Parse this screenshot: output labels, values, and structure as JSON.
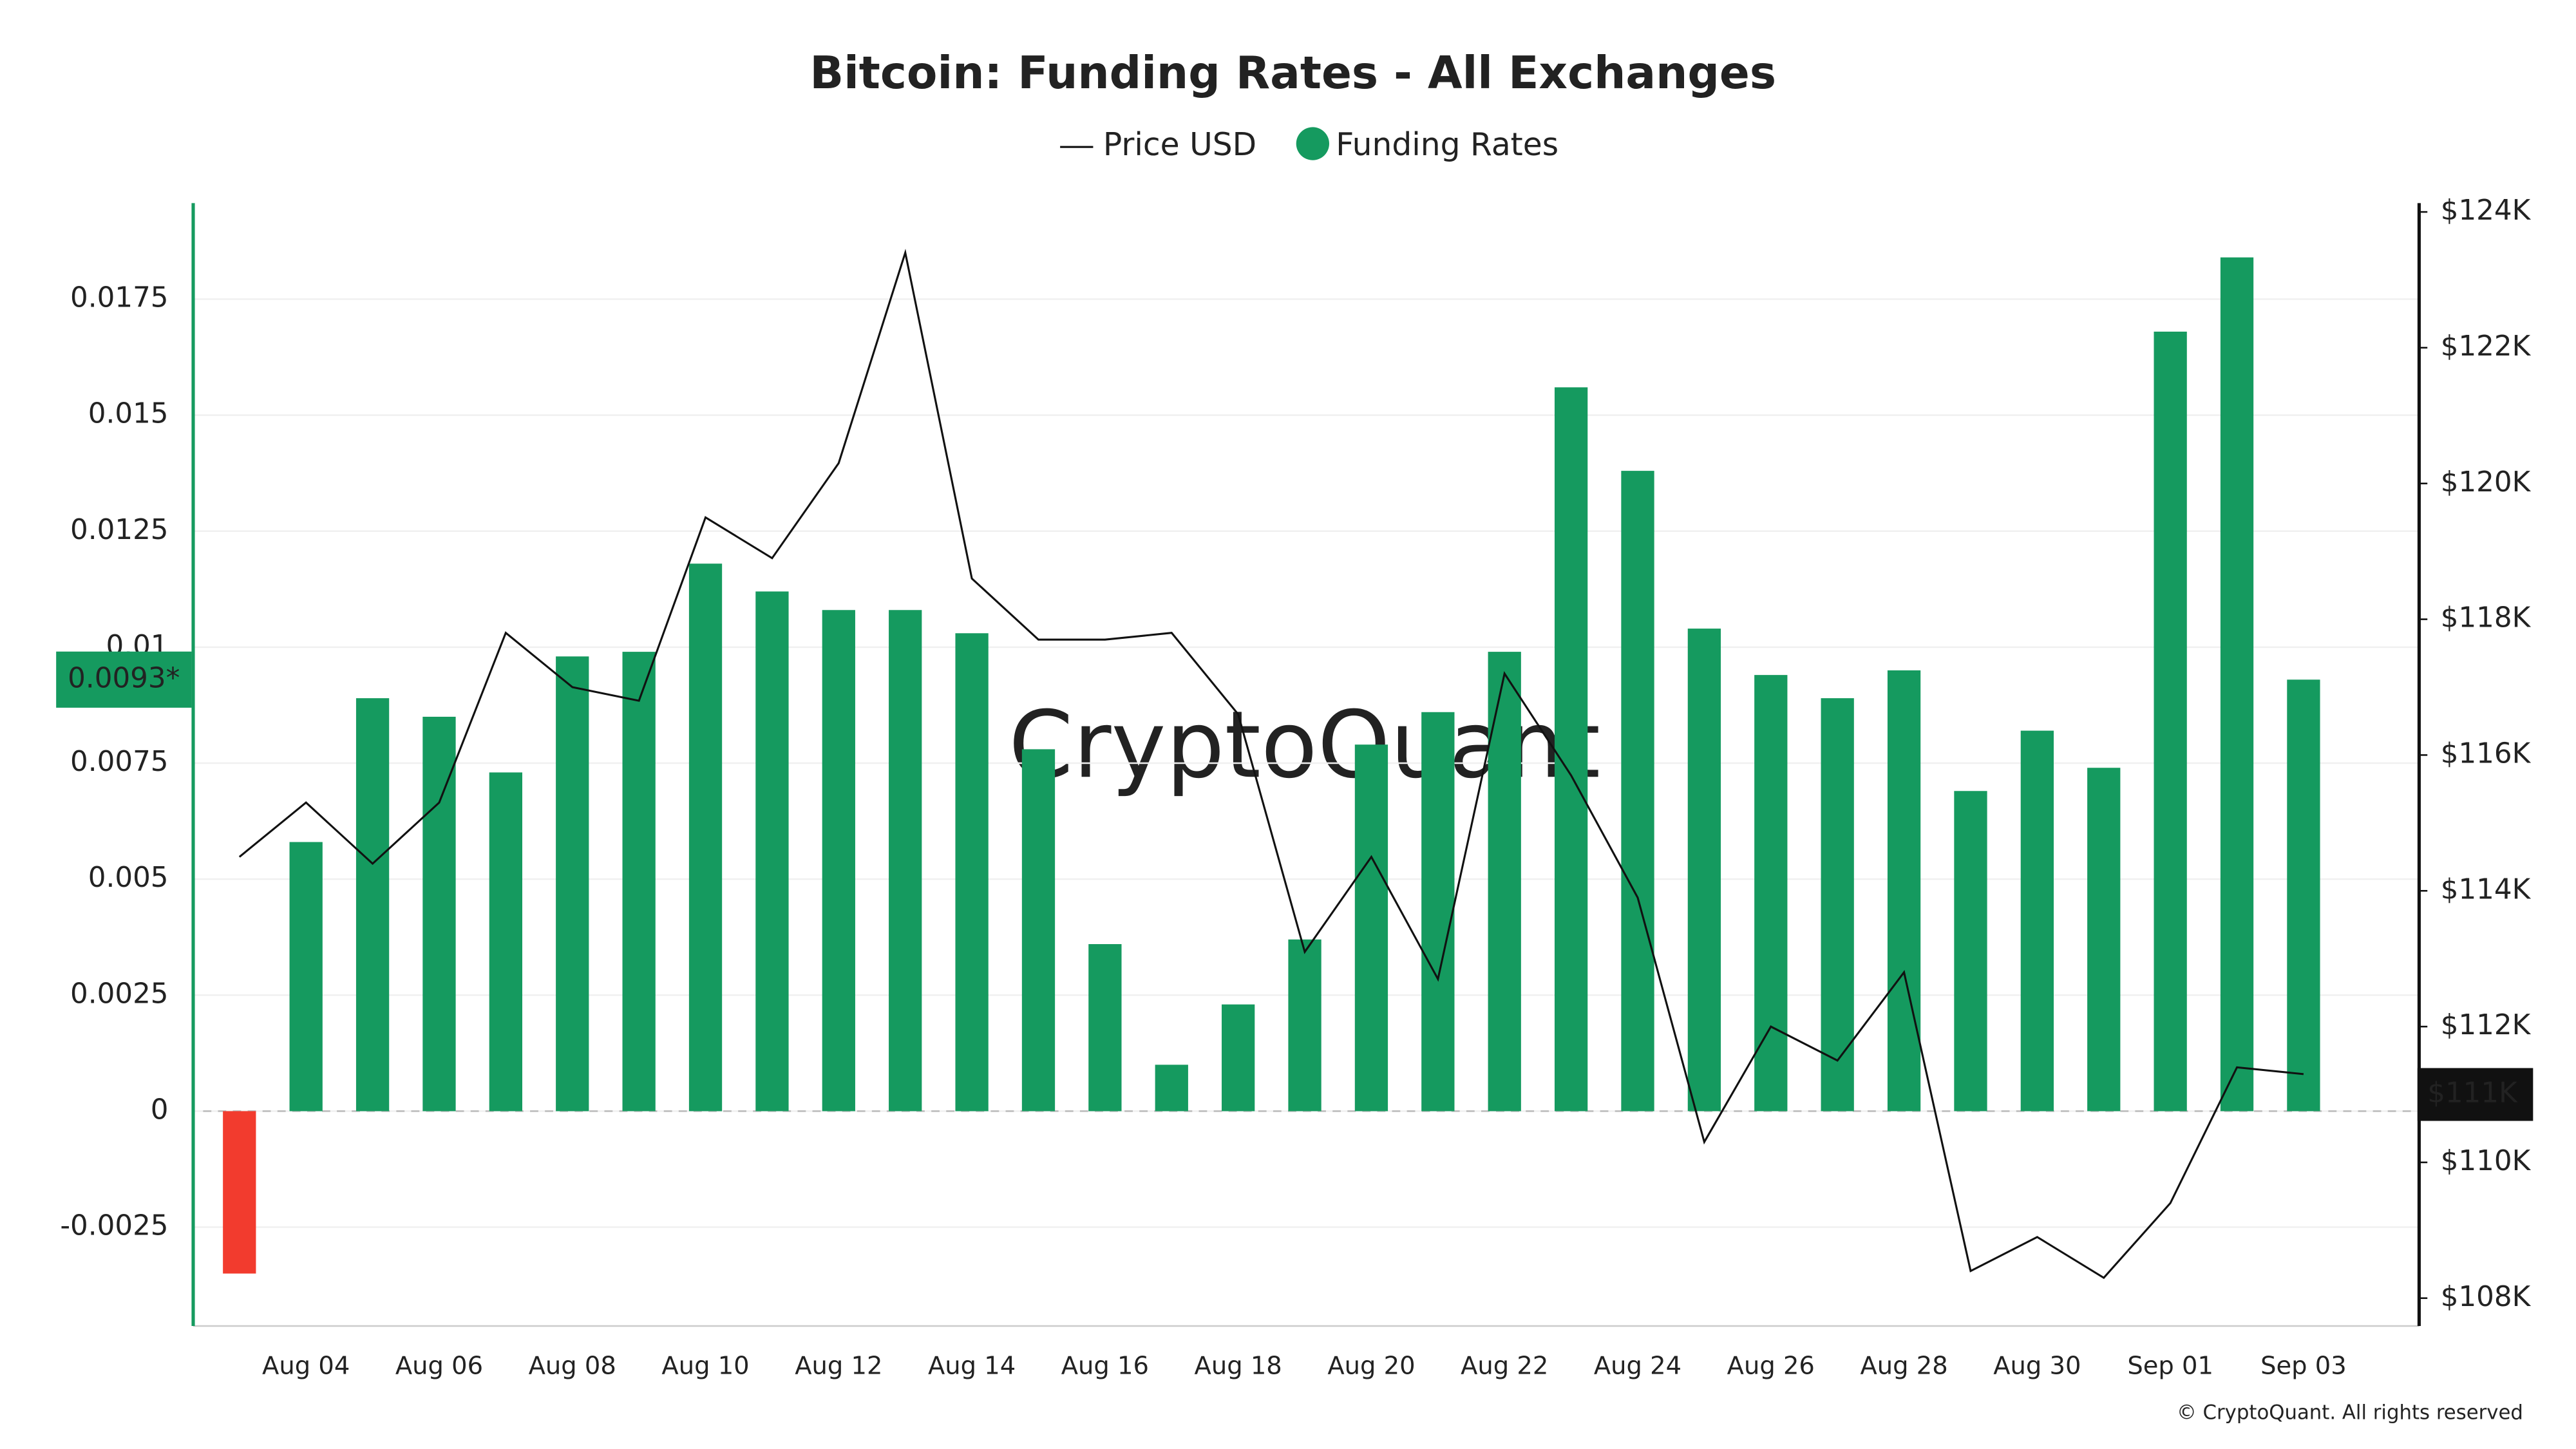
{
  "chart_data": {
    "type": "bar",
    "title": "Bitcoin: Funding Rates - All Exchanges",
    "watermark": "CryptoQuant",
    "footer": "© CryptoQuant. All rights reserved",
    "categories": [
      null,
      "Aug 04",
      null,
      "Aug 06",
      null,
      "Aug 08",
      null,
      "Aug 10",
      null,
      "Aug 12",
      null,
      "Aug 14",
      null,
      "Aug 16",
      null,
      "Aug 18",
      null,
      "Aug 20",
      null,
      "Aug 22",
      null,
      "Aug 24",
      null,
      "Aug 26",
      null,
      "Aug 28",
      null,
      "Aug 30",
      null,
      "Sep 01",
      null,
      "Sep 03"
    ],
    "series": [
      {
        "name": "Price USD",
        "type": "line",
        "axis": "y2",
        "color": "#111111",
        "values": [
          114500,
          115300,
          114400,
          115300,
          117800,
          117000,
          116800,
          119500,
          118900,
          120300,
          123400,
          118600,
          117700,
          117700,
          117800,
          116600,
          113100,
          114500,
          112700,
          117200,
          115700,
          113900,
          110300,
          112000,
          111500,
          112800,
          108400,
          108900,
          108300,
          109400,
          111400,
          111300
        ]
      },
      {
        "name": "Funding Rates",
        "type": "bar",
        "color": "#159a5f",
        "negative_color": "#f23b2e",
        "values": [
          -0.0035,
          0.0058,
          0.0089,
          0.0085,
          0.0073,
          0.0098,
          0.0099,
          0.0118,
          0.0112,
          0.0108,
          0.0108,
          0.0103,
          0.0078,
          0.0036,
          0.001,
          0.0023,
          0.0037,
          0.0079,
          0.0086,
          0.0099,
          0.0156,
          0.0138,
          0.0104,
          0.0094,
          0.0089,
          0.0095,
          0.0069,
          0.0082,
          0.0074,
          0.0168,
          0.0184,
          0.0093
        ]
      }
    ],
    "ylim": [
      -0.00463,
      0.01957
    ],
    "yticks": [
      -0.0025,
      0,
      0.0025,
      0.005,
      0.0075,
      0.01,
      0.0125,
      0.015,
      0.0175
    ],
    "y2lim": [
      107590,
      124130
    ],
    "y2ticks": [
      {
        "value": 108000,
        "label": "$108K"
      },
      {
        "value": 110000,
        "label": "$110K"
      },
      {
        "value": 112000,
        "label": "$112K"
      },
      {
        "value": 114000,
        "label": "$114K"
      },
      {
        "value": 116000,
        "label": "$116K"
      },
      {
        "value": 118000,
        "label": "$118K"
      },
      {
        "value": 120000,
        "label": "$120K"
      },
      {
        "value": 122000,
        "label": "$122K"
      },
      {
        "value": 124000,
        "label": "$124K"
      }
    ],
    "annotations": [
      {
        "text": "0.0093*",
        "value": 0.0093,
        "axis": "y"
      },
      {
        "text": "$111K",
        "value": 111000,
        "axis": "y2"
      }
    ],
    "grid": true,
    "legend": "top"
  }
}
